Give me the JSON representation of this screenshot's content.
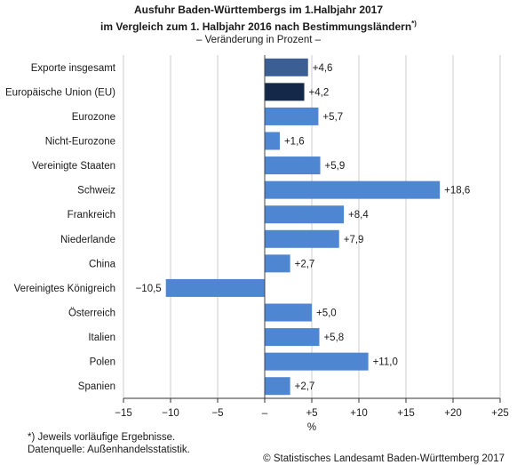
{
  "title_line1": "Ausfuhr Baden-Württembergs im 1.Halbjahr 2017",
  "title_line2": "im Vergleich zum 1. Halbjahr 2016 nach Bestimmungsländern",
  "title_marker": "*)",
  "subtitle": "– Veränderung in Prozent –",
  "footnote": "*) Jeweils vorläufige Ergebnisse.",
  "source": "Datenquelle: Außenhandelsstatistik.",
  "copyright": "© Statistisches Landesamt Baden-Württemberg 2017",
  "colors": {
    "total": "#3b5f95",
    "eu": "#14284a",
    "country": "#4f86d1",
    "grid": "#cccccc",
    "zero": "#444444"
  },
  "chart_data": {
    "type": "bar",
    "orientation": "horizontal",
    "categories": [
      "Exporte  insgesamt",
      "Europäische Union (EU)",
      "Eurozone",
      "Nicht-Eurozone",
      "Vereinigte Staaten",
      "Schweiz",
      "Frankreich",
      "Niederlande",
      "China",
      "Vereinigtes Königreich",
      "Österreich",
      "Italien",
      "Polen",
      "Spanien"
    ],
    "values": [
      4.6,
      4.2,
      5.7,
      1.6,
      5.9,
      18.6,
      8.4,
      7.9,
      2.7,
      -10.5,
      5.0,
      5.8,
      11.0,
      2.7
    ],
    "value_labels": [
      "+4,6",
      "+4,2",
      "+5,7",
      "+1,6",
      "+5,9",
      "+18,6",
      "+8,4",
      "+7,9",
      "+2,7",
      "−10,5",
      "+5,0",
      "+5,8",
      "+11,0",
      "+2,7"
    ],
    "bar_colors": [
      "total",
      "eu",
      "country",
      "country",
      "country",
      "country",
      "country",
      "country",
      "country",
      "country",
      "country",
      "country",
      "country",
      "country"
    ],
    "xlabel": "%",
    "xlim": [
      -15,
      25
    ],
    "xticks": [
      -15,
      -10,
      -5,
      0,
      5,
      10,
      15,
      20,
      25
    ],
    "xtick_labels": [
      "−15",
      "−10",
      "−5",
      "–",
      "+5",
      "+10",
      "+15",
      "+20",
      "+25"
    ],
    "grid": true
  }
}
